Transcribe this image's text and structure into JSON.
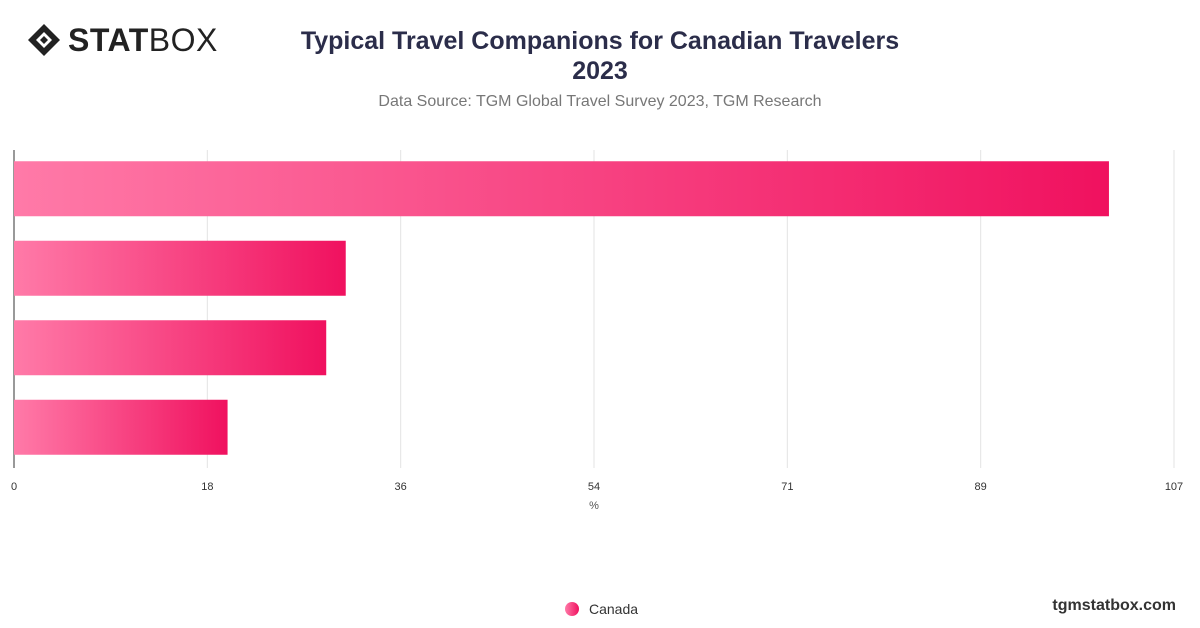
{
  "brand": {
    "logo_stat": "STAT",
    "logo_box": "BOX",
    "footer": "tgmstatbox.com"
  },
  "chart_data": {
    "type": "bar",
    "orientation": "horizontal",
    "title_line1": "Typical Travel Companions for Canadian Travelers",
    "title_line2": "2023",
    "subtitle": "Data Source: TGM Global Travel Survey 2023, TGM Research",
    "xlabel": "%",
    "xlim": [
      0,
      107
    ],
    "xticks": [
      "0",
      "18",
      "36",
      "54",
      "71",
      "89",
      "107"
    ],
    "categories": [
      "",
      "",
      "",
      ""
    ],
    "series": [
      {
        "name": "Canada",
        "values": [
          101,
          30.6,
          28.8,
          19.7
        ]
      }
    ],
    "legend_position": "bottom-center",
    "grid": true,
    "colors": {
      "bar_start": "#ff7aa8",
      "bar_end": "#f0115f",
      "grid": "#e3e3e3",
      "axis": "#333333"
    }
  }
}
